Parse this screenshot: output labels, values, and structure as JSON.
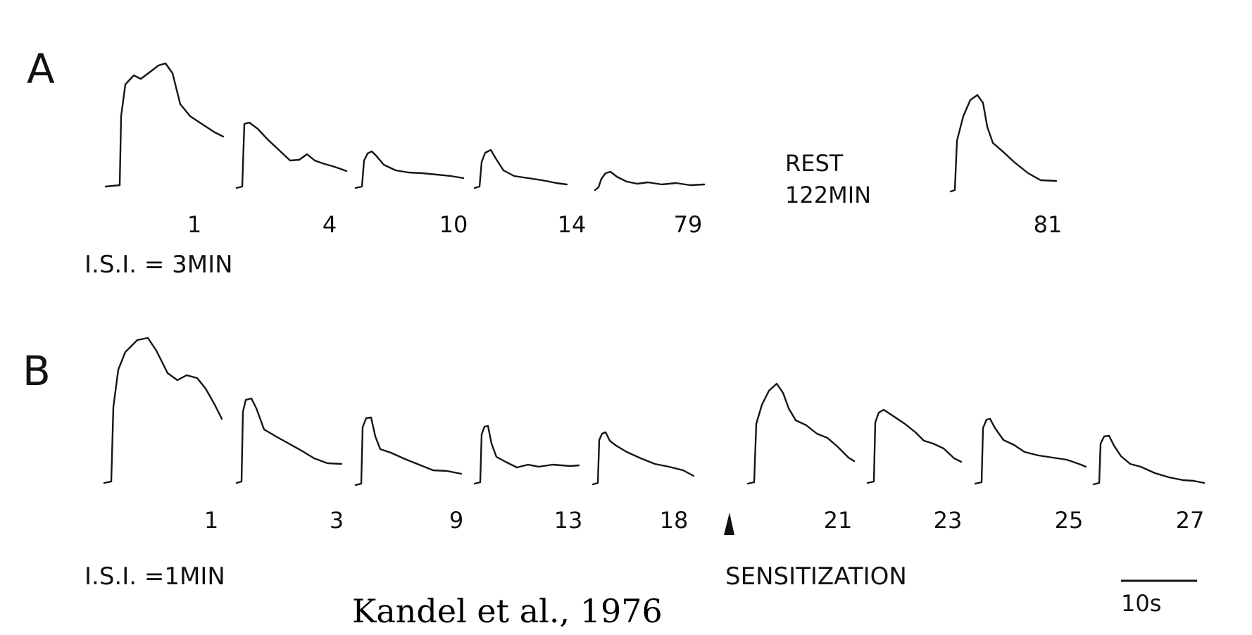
{
  "figure": {
    "panel_a": {
      "label": "A",
      "trials": [
        "1",
        "4",
        "10",
        "14",
        "79",
        "81"
      ],
      "rest_line1": "REST",
      "rest_line2": "122MIN",
      "isi": "I.S.I. = 3MIN"
    },
    "panel_b": {
      "label": "B",
      "trials": [
        "1",
        "3",
        "9",
        "13",
        "18",
        "21",
        "23",
        "25",
        "27"
      ],
      "isi": "I.S.I. =1MIN",
      "sensitization": "SENSITIZATION"
    },
    "scale_bar": {
      "label": "10s",
      "seconds": 10
    },
    "citation": "Kandel et al., 1976",
    "colors": {
      "ink": "#151515",
      "background": "#ffffff"
    }
  }
}
